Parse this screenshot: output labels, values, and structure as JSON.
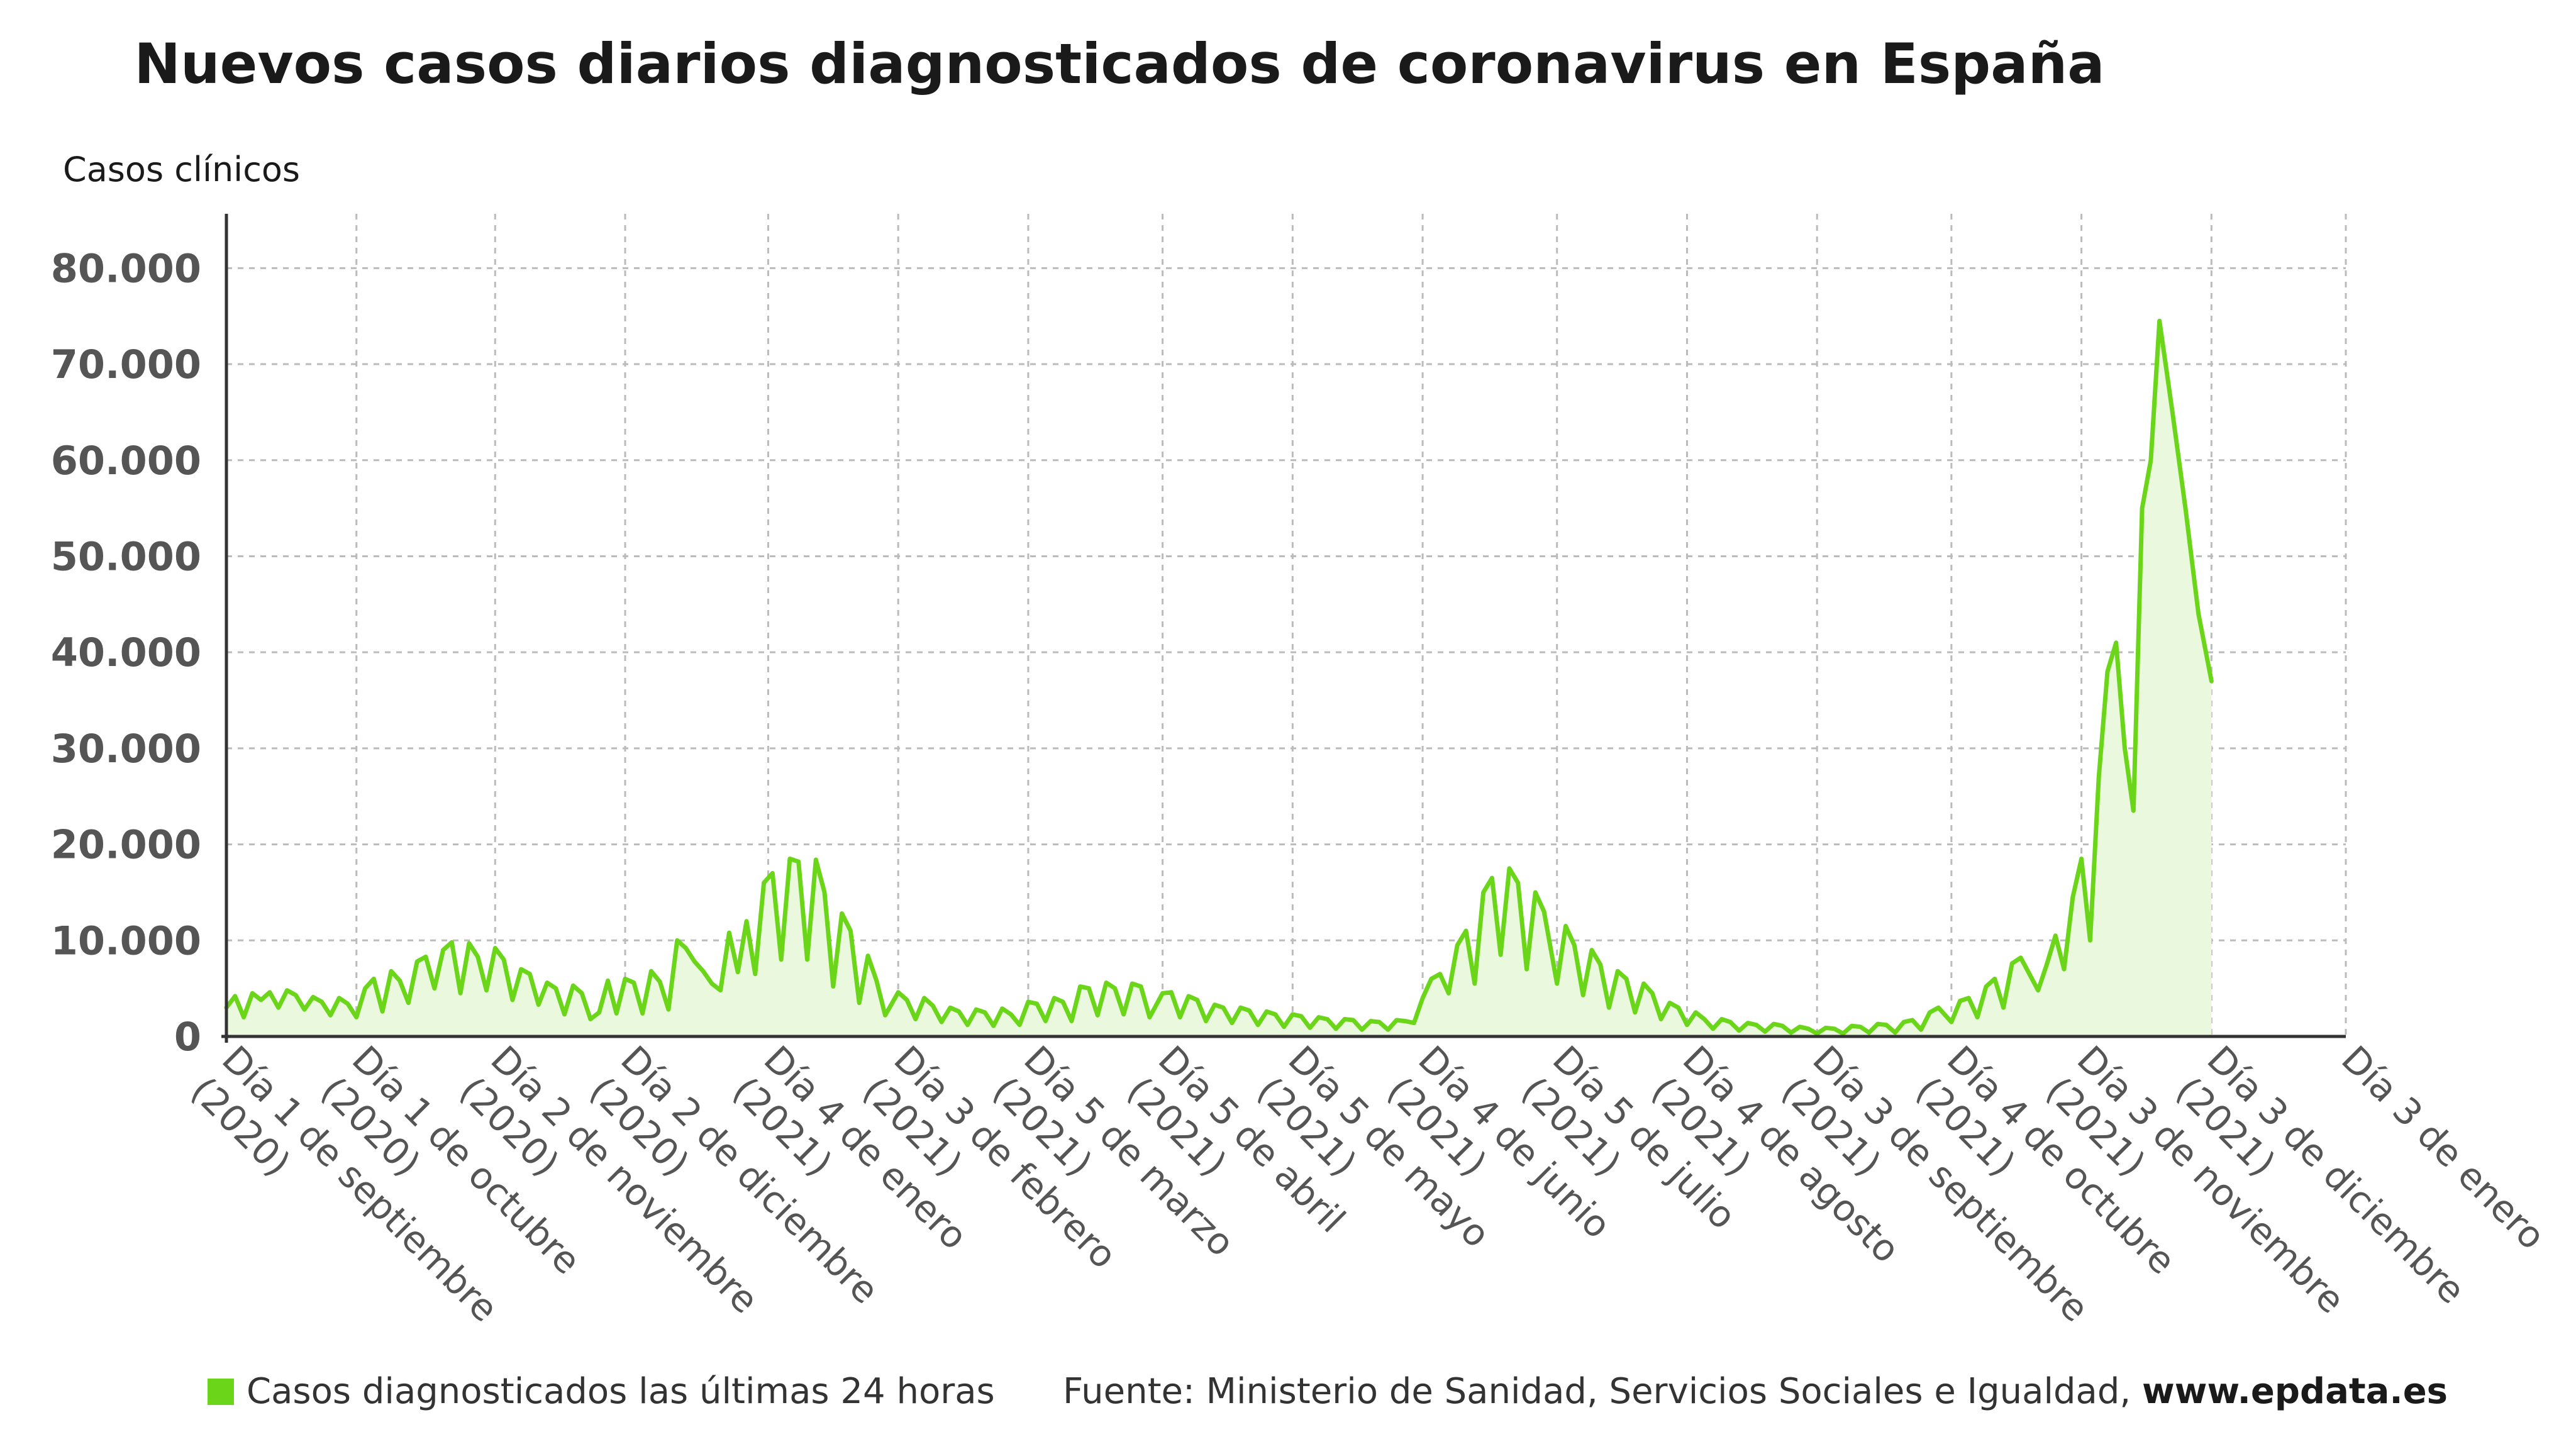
{
  "title": "Nuevos casos diarios diagnosticados de coronavirus en España",
  "colors": {
    "series": "#6bd51a",
    "fill": "#eaf8dd",
    "grid": "#bbbbbb",
    "axis": "#333333"
  },
  "legend": {
    "label": "Casos diagnosticados las últimas 24 horas"
  },
  "source": {
    "text": "Fuente: Ministerio de Sanidad, Servicios Sociales e Igualdad,",
    "site": "www.epdata.es"
  },
  "chart_data": {
    "type": "area",
    "ylabel": "Casos clínicos",
    "ylim": [
      0,
      85000
    ],
    "y_ticks": [
      {
        "value": 0,
        "label": "0"
      },
      {
        "value": 10000,
        "label": "10.000"
      },
      {
        "value": 20000,
        "label": "20.000"
      },
      {
        "value": 30000,
        "label": "30.000"
      },
      {
        "value": 40000,
        "label": "40.000"
      },
      {
        "value": 50000,
        "label": "50.000"
      },
      {
        "value": 60000,
        "label": "60.000"
      },
      {
        "value": 70000,
        "label": "70.000"
      },
      {
        "value": 80000,
        "label": "80.000"
      }
    ],
    "xlim": [
      "2020-09-01",
      "2022-01-03"
    ],
    "x_ticks": [
      {
        "date": "2020-09-01",
        "label": "Día 1 de septiembre (2020)"
      },
      {
        "date": "2020-10-01",
        "label": "Día 1 de octubre (2020)"
      },
      {
        "date": "2020-11-02",
        "label": "Día 2 de noviembre (2020)"
      },
      {
        "date": "2020-12-02",
        "label": "Día 2 de diciembre (2020)"
      },
      {
        "date": "2021-01-04",
        "label": "Día 4 de enero (2021)"
      },
      {
        "date": "2021-02-03",
        "label": "Día 3 de febrero (2021)"
      },
      {
        "date": "2021-03-05",
        "label": "Día 5 de marzo (2021)"
      },
      {
        "date": "2021-04-05",
        "label": "Día 5 de abril (2021)"
      },
      {
        "date": "2021-05-05",
        "label": "Día 5 de mayo (2021)"
      },
      {
        "date": "2021-06-04",
        "label": "Día 4 de junio (2021)"
      },
      {
        "date": "2021-07-05",
        "label": "Día 5 de julio (2021)"
      },
      {
        "date": "2021-08-04",
        "label": "Día 4 de agosto (2021)"
      },
      {
        "date": "2021-09-03",
        "label": "Día 3 de septiembre (2021)"
      },
      {
        "date": "2021-10-04",
        "label": "Día 4 de octubre (2021)"
      },
      {
        "date": "2021-11-03",
        "label": "Día 3 de noviembre (2021)"
      },
      {
        "date": "2021-12-03",
        "label": "Día 3 de diciembre (2021)"
      },
      {
        "date": "2022-01-03",
        "label": "Día 3 de enero"
      }
    ],
    "grid": true,
    "legend_position": "bottom-left",
    "series": [
      {
        "name": "Casos diagnosticados las últimas 24 horas",
        "points": [
          [
            "2020-09-01",
            3000
          ],
          [
            "2020-09-03",
            4200
          ],
          [
            "2020-09-05",
            2000
          ],
          [
            "2020-09-07",
            4500
          ],
          [
            "2020-09-09",
            3800
          ],
          [
            "2020-09-11",
            4600
          ],
          [
            "2020-09-13",
            3000
          ],
          [
            "2020-09-15",
            4800
          ],
          [
            "2020-09-17",
            4300
          ],
          [
            "2020-09-19",
            2800
          ],
          [
            "2020-09-21",
            4100
          ],
          [
            "2020-09-23",
            3600
          ],
          [
            "2020-09-25",
            2200
          ],
          [
            "2020-09-27",
            4000
          ],
          [
            "2020-09-29",
            3400
          ],
          [
            "2020-10-01",
            2000
          ],
          [
            "2020-10-03",
            5000
          ],
          [
            "2020-10-05",
            6000
          ],
          [
            "2020-10-07",
            2600
          ],
          [
            "2020-10-09",
            6800
          ],
          [
            "2020-10-11",
            5800
          ],
          [
            "2020-10-13",
            3500
          ],
          [
            "2020-10-15",
            7800
          ],
          [
            "2020-10-17",
            8300
          ],
          [
            "2020-10-19",
            5000
          ],
          [
            "2020-10-21",
            9000
          ],
          [
            "2020-10-23",
            9800
          ],
          [
            "2020-10-25",
            4500
          ],
          [
            "2020-10-27",
            9700
          ],
          [
            "2020-10-29",
            8300
          ],
          [
            "2020-10-31",
            4800
          ],
          [
            "2020-11-02",
            9200
          ],
          [
            "2020-11-04",
            8000
          ],
          [
            "2020-11-06",
            3800
          ],
          [
            "2020-11-08",
            7000
          ],
          [
            "2020-11-10",
            6500
          ],
          [
            "2020-11-12",
            3300
          ],
          [
            "2020-11-14",
            5600
          ],
          [
            "2020-11-16",
            5000
          ],
          [
            "2020-11-18",
            2300
          ],
          [
            "2020-11-20",
            5300
          ],
          [
            "2020-11-22",
            4500
          ],
          [
            "2020-11-24",
            1800
          ],
          [
            "2020-11-26",
            2500
          ],
          [
            "2020-11-28",
            5800
          ],
          [
            "2020-11-30",
            2400
          ],
          [
            "2020-12-02",
            6000
          ],
          [
            "2020-12-04",
            5600
          ],
          [
            "2020-12-06",
            2400
          ],
          [
            "2020-12-08",
            6800
          ],
          [
            "2020-12-10",
            5700
          ],
          [
            "2020-12-12",
            2800
          ],
          [
            "2020-12-14",
            10000
          ],
          [
            "2020-12-16",
            9200
          ],
          [
            "2020-12-18",
            7800
          ],
          [
            "2020-12-20",
            6800
          ],
          [
            "2020-12-22",
            5500
          ],
          [
            "2020-12-24",
            4800
          ],
          [
            "2020-12-26",
            10800
          ],
          [
            "2020-12-28",
            6700
          ],
          [
            "2020-12-30",
            12000
          ],
          [
            "2021-01-01",
            6500
          ],
          [
            "2021-01-03",
            16000
          ],
          [
            "2021-01-05",
            17000
          ],
          [
            "2021-01-07",
            8000
          ],
          [
            "2021-01-09",
            18500
          ],
          [
            "2021-01-11",
            18200
          ],
          [
            "2021-01-13",
            8000
          ],
          [
            "2021-01-15",
            18400
          ],
          [
            "2021-01-17",
            15000
          ],
          [
            "2021-01-19",
            5200
          ],
          [
            "2021-01-21",
            12800
          ],
          [
            "2021-01-23",
            11000
          ],
          [
            "2021-01-25",
            3500
          ],
          [
            "2021-01-27",
            8400
          ],
          [
            "2021-01-29",
            5800
          ],
          [
            "2021-01-31",
            2200
          ],
          [
            "2021-02-03",
            4600
          ],
          [
            "2021-02-05",
            3800
          ],
          [
            "2021-02-07",
            1800
          ],
          [
            "2021-02-09",
            4000
          ],
          [
            "2021-02-11",
            3200
          ],
          [
            "2021-02-13",
            1500
          ],
          [
            "2021-02-15",
            3000
          ],
          [
            "2021-02-17",
            2600
          ],
          [
            "2021-02-19",
            1200
          ],
          [
            "2021-02-21",
            2800
          ],
          [
            "2021-02-23",
            2500
          ],
          [
            "2021-02-25",
            1100
          ],
          [
            "2021-02-27",
            2900
          ],
          [
            "2021-03-01",
            2300
          ],
          [
            "2021-03-03",
            1200
          ],
          [
            "2021-03-05",
            3600
          ],
          [
            "2021-03-07",
            3400
          ],
          [
            "2021-03-09",
            1600
          ],
          [
            "2021-03-11",
            4000
          ],
          [
            "2021-03-13",
            3600
          ],
          [
            "2021-03-15",
            1600
          ],
          [
            "2021-03-17",
            5200
          ],
          [
            "2021-03-19",
            5000
          ],
          [
            "2021-03-21",
            2200
          ],
          [
            "2021-03-23",
            5600
          ],
          [
            "2021-03-25",
            5000
          ],
          [
            "2021-03-27",
            2300
          ],
          [
            "2021-03-29",
            5500
          ],
          [
            "2021-03-31",
            5200
          ],
          [
            "2021-04-02",
            2000
          ],
          [
            "2021-04-05",
            4500
          ],
          [
            "2021-04-07",
            4600
          ],
          [
            "2021-04-09",
            2000
          ],
          [
            "2021-04-11",
            4200
          ],
          [
            "2021-04-13",
            3800
          ],
          [
            "2021-04-15",
            1600
          ],
          [
            "2021-04-17",
            3300
          ],
          [
            "2021-04-19",
            3000
          ],
          [
            "2021-04-21",
            1400
          ],
          [
            "2021-04-23",
            3000
          ],
          [
            "2021-04-25",
            2700
          ],
          [
            "2021-04-27",
            1200
          ],
          [
            "2021-04-29",
            2600
          ],
          [
            "2021-05-01",
            2300
          ],
          [
            "2021-05-03",
            1000
          ],
          [
            "2021-05-05",
            2300
          ],
          [
            "2021-05-07",
            2100
          ],
          [
            "2021-05-09",
            900
          ],
          [
            "2021-05-11",
            2000
          ],
          [
            "2021-05-13",
            1800
          ],
          [
            "2021-05-15",
            800
          ],
          [
            "2021-05-17",
            1800
          ],
          [
            "2021-05-19",
            1700
          ],
          [
            "2021-05-21",
            700
          ],
          [
            "2021-05-23",
            1600
          ],
          [
            "2021-05-25",
            1500
          ],
          [
            "2021-05-27",
            700
          ],
          [
            "2021-05-29",
            1700
          ],
          [
            "2021-05-31",
            1600
          ],
          [
            "2021-06-02",
            1400
          ],
          [
            "2021-06-04",
            4000
          ],
          [
            "2021-06-06",
            6000
          ],
          [
            "2021-06-08",
            6500
          ],
          [
            "2021-06-10",
            4500
          ],
          [
            "2021-06-12",
            9500
          ],
          [
            "2021-06-14",
            11000
          ],
          [
            "2021-06-16",
            5500
          ],
          [
            "2021-06-18",
            15000
          ],
          [
            "2021-06-20",
            16500
          ],
          [
            "2021-06-22",
            8500
          ],
          [
            "2021-06-24",
            17500
          ],
          [
            "2021-06-26",
            16000
          ],
          [
            "2021-06-28",
            7000
          ],
          [
            "2021-06-30",
            15000
          ],
          [
            "2021-07-02",
            13000
          ],
          [
            "2021-07-05",
            5500
          ],
          [
            "2021-07-07",
            11500
          ],
          [
            "2021-07-09",
            9500
          ],
          [
            "2021-07-11",
            4300
          ],
          [
            "2021-07-13",
            9000
          ],
          [
            "2021-07-15",
            7500
          ],
          [
            "2021-07-17",
            3000
          ],
          [
            "2021-07-19",
            6800
          ],
          [
            "2021-07-21",
            6000
          ],
          [
            "2021-07-23",
            2500
          ],
          [
            "2021-07-25",
            5500
          ],
          [
            "2021-07-27",
            4500
          ],
          [
            "2021-07-29",
            1800
          ],
          [
            "2021-07-31",
            3500
          ],
          [
            "2021-08-02",
            3000
          ],
          [
            "2021-08-04",
            1200
          ],
          [
            "2021-08-06",
            2500
          ],
          [
            "2021-08-08",
            1800
          ],
          [
            "2021-08-10",
            800
          ],
          [
            "2021-08-12",
            1800
          ],
          [
            "2021-08-14",
            1500
          ],
          [
            "2021-08-16",
            600
          ],
          [
            "2021-08-18",
            1400
          ],
          [
            "2021-08-20",
            1200
          ],
          [
            "2021-08-22",
            500
          ],
          [
            "2021-08-24",
            1300
          ],
          [
            "2021-08-26",
            1100
          ],
          [
            "2021-08-28",
            400
          ],
          [
            "2021-08-30",
            1000
          ],
          [
            "2021-09-01",
            800
          ],
          [
            "2021-09-03",
            300
          ],
          [
            "2021-09-05",
            900
          ],
          [
            "2021-09-07",
            800
          ],
          [
            "2021-09-09",
            300
          ],
          [
            "2021-09-11",
            1100
          ],
          [
            "2021-09-13",
            1000
          ],
          [
            "2021-09-15",
            400
          ],
          [
            "2021-09-17",
            1300
          ],
          [
            "2021-09-19",
            1200
          ],
          [
            "2021-09-21",
            400
          ],
          [
            "2021-09-23",
            1500
          ],
          [
            "2021-09-25",
            1700
          ],
          [
            "2021-09-27",
            700
          ],
          [
            "2021-09-29",
            2500
          ],
          [
            "2021-10-01",
            3000
          ],
          [
            "2021-10-04",
            1500
          ],
          [
            "2021-10-06",
            3700
          ],
          [
            "2021-10-08",
            4000
          ],
          [
            "2021-10-10",
            2000
          ],
          [
            "2021-10-12",
            5200
          ],
          [
            "2021-10-14",
            6000
          ],
          [
            "2021-10-16",
            3000
          ],
          [
            "2021-10-18",
            7600
          ],
          [
            "2021-10-20",
            8200
          ],
          [
            "2021-10-22",
            6500
          ],
          [
            "2021-10-24",
            4800
          ],
          [
            "2021-10-26",
            7500
          ],
          [
            "2021-10-28",
            10500
          ],
          [
            "2021-10-30",
            7000
          ],
          [
            "2021-11-01",
            14500
          ],
          [
            "2021-11-03",
            18500
          ],
          [
            "2021-11-05",
            10000
          ],
          [
            "2021-11-07",
            27000
          ],
          [
            "2021-11-09",
            38000
          ],
          [
            "2021-11-11",
            41000
          ],
          [
            "2021-11-13",
            30000
          ],
          [
            "2021-11-15",
            23500
          ],
          [
            "2021-11-17",
            55000
          ],
          [
            "2021-11-19",
            60000
          ],
          [
            "2021-11-21",
            74500
          ],
          [
            "2021-11-24",
            65000
          ],
          [
            "2021-11-27",
            55000
          ],
          [
            "2021-11-30",
            44000
          ],
          [
            "2021-12-03",
            37000
          ]
        ]
      }
    ]
  }
}
